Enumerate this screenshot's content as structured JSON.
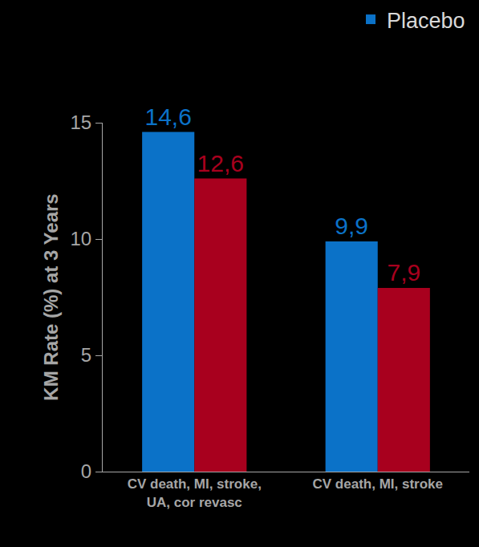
{
  "chart_data": {
    "type": "bar",
    "y_label": "KM Rate (%) at 3 Years",
    "categories": [
      "CV death, MI, stroke, UA, cor revasc",
      "CV death, MI, stroke"
    ],
    "series": [
      {
        "name": "Placebo",
        "color": "#0B72C8",
        "values": [
          14.6,
          9.9
        ],
        "value_labels": [
          "14,6",
          "9,9"
        ]
      },
      {
        "color": "#A8001E",
        "values": [
          12.6,
          7.9
        ],
        "value_labels": [
          "12,6",
          "7,9"
        ]
      }
    ],
    "ylim": [
      0,
      15
    ],
    "yticks": [
      0,
      5,
      10,
      15
    ],
    "grid": false,
    "legend": "top right",
    "data_labels": true
  }
}
